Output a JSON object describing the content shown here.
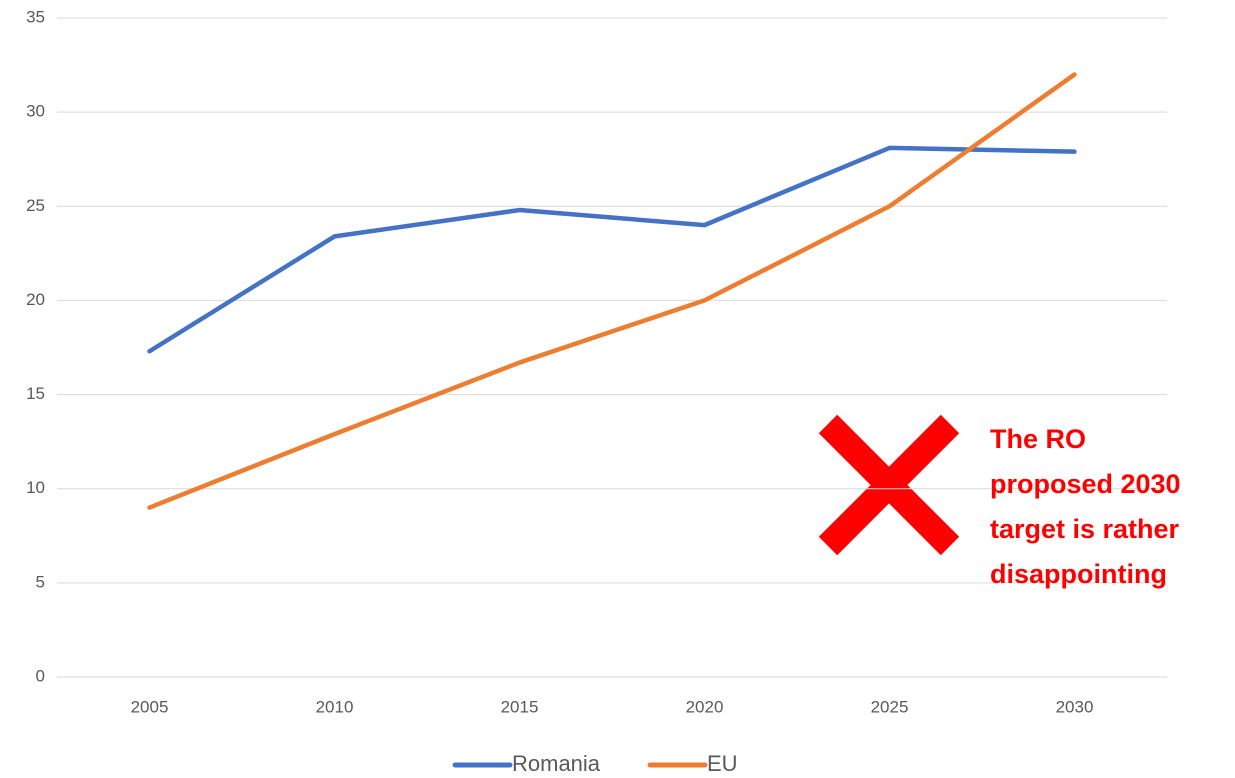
{
  "chart_data": {
    "type": "line",
    "categories": [
      "2005",
      "2010",
      "2015",
      "2020",
      "2025",
      "2030"
    ],
    "series": [
      {
        "name": "Romania",
        "color": "#4472c4",
        "values": [
          17.3,
          23.4,
          24.8,
          24.0,
          28.1,
          27.9
        ]
      },
      {
        "name": "EU",
        "color": "#ed7d31",
        "values": [
          9.0,
          12.9,
          16.7,
          20.0,
          25.0,
          32.0
        ]
      }
    ],
    "ylim": [
      0,
      35
    ],
    "yticks": [
      0,
      5,
      10,
      15,
      20,
      25,
      30,
      35
    ],
    "grid": true,
    "legend": "bottom",
    "annotation": [
      "The RO",
      "proposed 2030",
      "target is rather",
      "disappointing"
    ]
  }
}
